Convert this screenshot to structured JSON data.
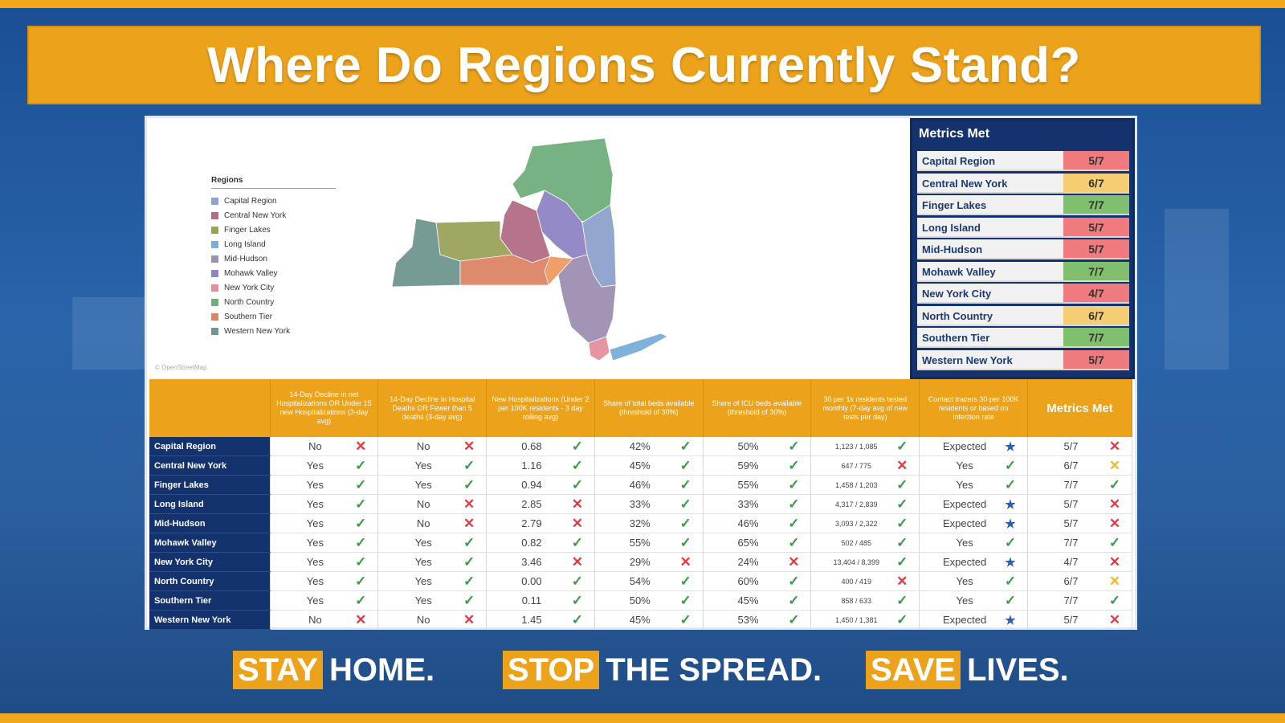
{
  "title": "Where Do Regions Currently Stand?",
  "map": {
    "legend_title": "Regions",
    "legend": [
      {
        "label": "Capital Region",
        "color": "#8ea2cc"
      },
      {
        "label": "Central New York",
        "color": "#b26c86"
      },
      {
        "label": "Finger Lakes",
        "color": "#9aa35a"
      },
      {
        "label": "Long Island",
        "color": "#7aaed8"
      },
      {
        "label": "Mid-Hudson",
        "color": "#9c8fb0"
      },
      {
        "label": "Mohawk Valley",
        "color": "#8f84c6"
      },
      {
        "label": "New York City",
        "color": "#e58f9c"
      },
      {
        "label": "North Country",
        "color": "#6fae7c"
      },
      {
        "label": "Southern Tier",
        "color": "#dd8466"
      },
      {
        "label": "Western New York",
        "color": "#6f9690"
      }
    ],
    "attribution": "© OpenStreetMap"
  },
  "metrics_met": {
    "title": "Metrics Met",
    "rows": [
      {
        "region": "Capital Region",
        "value": "5/7",
        "color": "#ef7b7e"
      },
      {
        "region": "Central New York",
        "value": "6/7",
        "color": "#f5cd73"
      },
      {
        "region": "Finger Lakes",
        "value": "7/7",
        "color": "#7fbf6e"
      },
      {
        "region": "Long Island",
        "value": "5/7",
        "color": "#ef7b7e"
      },
      {
        "region": "Mid-Hudson",
        "value": "5/7",
        "color": "#ef7b7e"
      },
      {
        "region": "Mohawk Valley",
        "value": "7/7",
        "color": "#7fbf6e"
      },
      {
        "region": "New York City",
        "value": "4/7",
        "color": "#ef7b7e"
      },
      {
        "region": "North Country",
        "value": "6/7",
        "color": "#f5cd73"
      },
      {
        "region": "Southern Tier",
        "value": "7/7",
        "color": "#7fbf6e"
      },
      {
        "region": "Western New York",
        "value": "5/7",
        "color": "#ef7b7e"
      }
    ]
  },
  "table": {
    "headers": [
      "",
      "14-Day Decline in net Hospitalizations OR Under 15 new Hospitalizations (3-day avg)",
      "14-Day Decline in Hospital Deaths OR Fewer than 5 deaths (3-day avg)",
      "New Hospitalizations (Under 2 per 100K residents - 3 day rolling avg)",
      "Share of total beds available (threshold of 30%)",
      "Share of ICU beds available (threshold of 30%)",
      "30 per 1k residents tested monthly (7-day avg of new tests per day)",
      "Contact tracers 30 per 100K residents or based on infection rate",
      "Metrics Met"
    ],
    "rows": [
      {
        "region": "Capital Region",
        "cells": [
          [
            "No",
            "x"
          ],
          [
            "No",
            "x"
          ],
          [
            "0.68",
            "check"
          ],
          [
            "42%",
            "check"
          ],
          [
            "50%",
            "check"
          ],
          [
            "1,123 / 1,085",
            "check"
          ],
          [
            "Expected",
            "star"
          ],
          [
            "5/7",
            "x"
          ]
        ]
      },
      {
        "region": "Central New York",
        "cells": [
          [
            "Yes",
            "check"
          ],
          [
            "Yes",
            "check"
          ],
          [
            "1.16",
            "check"
          ],
          [
            "45%",
            "check"
          ],
          [
            "59%",
            "check"
          ],
          [
            "647 / 775",
            "x"
          ],
          [
            "Yes",
            "check"
          ],
          [
            "6/7",
            "xy"
          ]
        ]
      },
      {
        "region": "Finger Lakes",
        "cells": [
          [
            "Yes",
            "check"
          ],
          [
            "Yes",
            "check"
          ],
          [
            "0.94",
            "check"
          ],
          [
            "46%",
            "check"
          ],
          [
            "55%",
            "check"
          ],
          [
            "1,458 / 1,203",
            "check"
          ],
          [
            "Yes",
            "check"
          ],
          [
            "7/7",
            "check"
          ]
        ]
      },
      {
        "region": "Long Island",
        "cells": [
          [
            "Yes",
            "check"
          ],
          [
            "No",
            "x"
          ],
          [
            "2.85",
            "x"
          ],
          [
            "33%",
            "check"
          ],
          [
            "33%",
            "check"
          ],
          [
            "4,317 / 2,839",
            "check"
          ],
          [
            "Expected",
            "star"
          ],
          [
            "5/7",
            "x"
          ]
        ]
      },
      {
        "region": "Mid-Hudson",
        "cells": [
          [
            "Yes",
            "check"
          ],
          [
            "No",
            "x"
          ],
          [
            "2.79",
            "x"
          ],
          [
            "32%",
            "check"
          ],
          [
            "46%",
            "check"
          ],
          [
            "3,093 / 2,322",
            "check"
          ],
          [
            "Expected",
            "star"
          ],
          [
            "5/7",
            "x"
          ]
        ]
      },
      {
        "region": "Mohawk Valley",
        "cells": [
          [
            "Yes",
            "check"
          ],
          [
            "Yes",
            "check"
          ],
          [
            "0.82",
            "check"
          ],
          [
            "55%",
            "check"
          ],
          [
            "65%",
            "check"
          ],
          [
            "502 / 485",
            "check"
          ],
          [
            "Yes",
            "check"
          ],
          [
            "7/7",
            "check"
          ]
        ]
      },
      {
        "region": "New York City",
        "cells": [
          [
            "Yes",
            "check"
          ],
          [
            "Yes",
            "check"
          ],
          [
            "3.46",
            "x"
          ],
          [
            "29%",
            "x"
          ],
          [
            "24%",
            "x"
          ],
          [
            "13,404 / 8,399",
            "check"
          ],
          [
            "Expected",
            "star"
          ],
          [
            "4/7",
            "x"
          ]
        ]
      },
      {
        "region": "North Country",
        "cells": [
          [
            "Yes",
            "check"
          ],
          [
            "Yes",
            "check"
          ],
          [
            "0.00",
            "check"
          ],
          [
            "54%",
            "check"
          ],
          [
            "60%",
            "check"
          ],
          [
            "400 / 419",
            "x"
          ],
          [
            "Yes",
            "check"
          ],
          [
            "6/7",
            "xy"
          ]
        ]
      },
      {
        "region": "Southern Tier",
        "cells": [
          [
            "Yes",
            "check"
          ],
          [
            "Yes",
            "check"
          ],
          [
            "0.11",
            "check"
          ],
          [
            "50%",
            "check"
          ],
          [
            "45%",
            "check"
          ],
          [
            "858 / 633",
            "check"
          ],
          [
            "Yes",
            "check"
          ],
          [
            "7/7",
            "check"
          ]
        ]
      },
      {
        "region": "Western New York",
        "cells": [
          [
            "No",
            "x"
          ],
          [
            "No",
            "x"
          ],
          [
            "1.45",
            "check"
          ],
          [
            "45%",
            "check"
          ],
          [
            "53%",
            "check"
          ],
          [
            "1,450 / 1,381",
            "check"
          ],
          [
            "Expected",
            "star"
          ],
          [
            "5/7",
            "x"
          ]
        ]
      }
    ]
  },
  "slogans": [
    {
      "highlight": "STAY",
      "rest": "HOME."
    },
    {
      "highlight": "STOP",
      "rest": "THE SPREAD."
    },
    {
      "highlight": "SAVE",
      "rest": "LIVES."
    }
  ]
}
